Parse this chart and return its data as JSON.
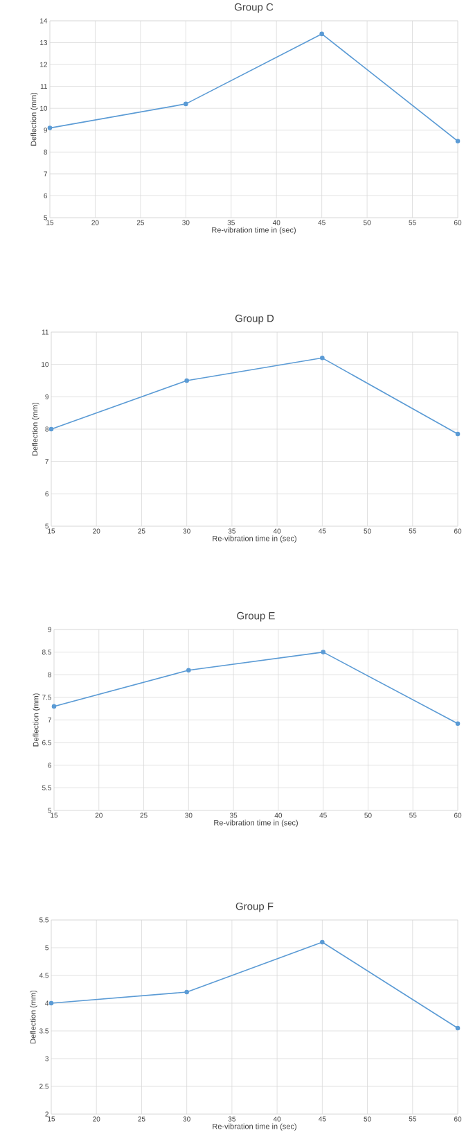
{
  "chart_data": [
    {
      "type": "line",
      "title": "Group C",
      "xlabel": "Re-vibration time in (sec)",
      "ylabel": "Deflection (mm)",
      "x": [
        15,
        30,
        45,
        60
      ],
      "values": [
        9.1,
        10.2,
        13.4,
        8.5
      ],
      "color": "#5b9bd5",
      "xlim": [
        15,
        60
      ],
      "ylim": [
        5,
        14
      ],
      "xticks": [
        15,
        20,
        25,
        30,
        35,
        40,
        45,
        50,
        55,
        60
      ],
      "yticks": [
        5,
        6,
        7,
        8,
        9,
        10,
        11,
        12,
        13,
        14
      ],
      "grid": true,
      "marker": "circle",
      "line_style": "solid"
    },
    {
      "type": "line",
      "title": "Group D",
      "xlabel": "Re-vibration time in (sec)",
      "ylabel": "Deflection (mm)",
      "x": [
        15,
        30,
        45,
        60
      ],
      "values": [
        8.0,
        9.5,
        10.2,
        7.85
      ],
      "color": "#5b9bd5",
      "xlim": [
        15,
        60
      ],
      "ylim": [
        5,
        11
      ],
      "xticks": [
        15,
        20,
        25,
        30,
        35,
        40,
        45,
        50,
        55,
        60
      ],
      "yticks": [
        5,
        6,
        7,
        8,
        9,
        10,
        11
      ],
      "grid": true,
      "marker": "circle",
      "line_style": "solid"
    },
    {
      "type": "line",
      "title": "Group E",
      "xlabel": "Re-vibration time in (sec)",
      "ylabel": "Deflection (mm)",
      "x": [
        15,
        30,
        45,
        60
      ],
      "values": [
        7.3,
        8.1,
        8.5,
        6.92
      ],
      "color": "#5b9bd5",
      "xlim": [
        15,
        60
      ],
      "ylim": [
        5,
        9
      ],
      "xticks": [
        15,
        20,
        25,
        30,
        35,
        40,
        45,
        50,
        55,
        60
      ],
      "yticks": [
        5,
        5.5,
        6,
        6.5,
        7,
        7.5,
        8,
        8.5,
        9
      ],
      "grid": true,
      "marker": "circle",
      "line_style": "solid"
    },
    {
      "type": "line",
      "title": "Group F",
      "xlabel": "Re-vibration time in (sec)",
      "ylabel": "Deflection (mm)",
      "x": [
        15,
        30,
        45,
        60
      ],
      "values": [
        4.0,
        4.2,
        5.1,
        3.55
      ],
      "color": "#5b9bd5",
      "xlim": [
        15,
        60
      ],
      "ylim": [
        2,
        5.5
      ],
      "xticks": [
        15,
        20,
        25,
        30,
        35,
        40,
        45,
        50,
        55,
        60
      ],
      "yticks": [
        2,
        2.5,
        3,
        3.5,
        4,
        4.5,
        5,
        5.5
      ],
      "grid": true,
      "marker": "circle",
      "line_style": "solid"
    }
  ]
}
